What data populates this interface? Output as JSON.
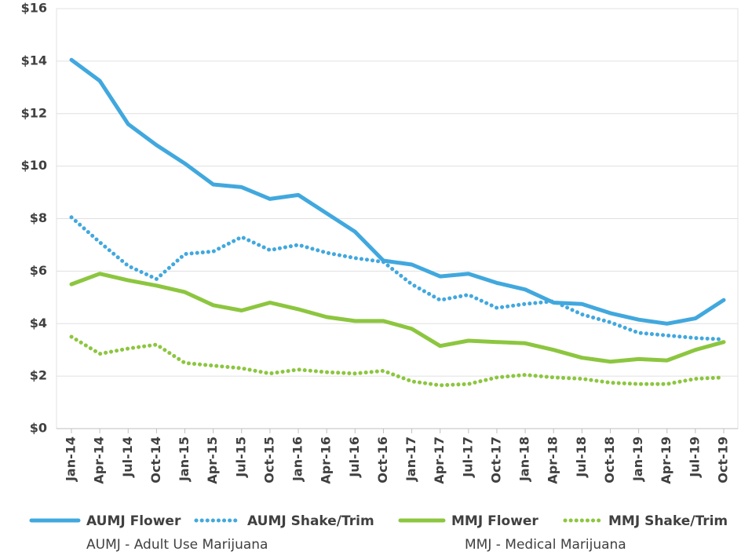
{
  "chart_data": {
    "type": "line",
    "categories": [
      "Jan-14",
      "Apr-14",
      "Jul-14",
      "Oct-14",
      "Jan-15",
      "Apr-15",
      "Jul-15",
      "Oct-15",
      "Jan-16",
      "Apr-16",
      "Jul-16",
      "Oct-16",
      "Jan-17",
      "Apr-17",
      "Jul-17",
      "Oct-17",
      "Jan-18",
      "Apr-18",
      "Jul-18",
      "Oct-18",
      "Jan-19",
      "Apr-19",
      "Jul-19",
      "Oct-19"
    ],
    "series": [
      {
        "name": "AUMJ Flower",
        "color": "#41a8de",
        "style": "solid",
        "values": [
          14.05,
          13.25,
          11.6,
          10.8,
          10.1,
          9.3,
          9.2,
          8.75,
          8.9,
          8.2,
          7.5,
          6.4,
          6.25,
          5.8,
          5.9,
          5.55,
          5.3,
          4.8,
          4.75,
          4.4,
          4.15,
          4.0,
          4.2,
          4.9
        ]
      },
      {
        "name": "AUMJ Shake/Trim",
        "color": "#41a8de",
        "style": "dotted",
        "values": [
          8.05,
          7.1,
          6.2,
          5.7,
          6.65,
          6.75,
          7.3,
          6.8,
          7.0,
          6.7,
          6.5,
          6.35,
          5.5,
          4.9,
          5.1,
          4.6,
          4.75,
          4.85,
          4.35,
          4.05,
          3.65,
          3.55,
          3.45,
          3.4
        ]
      },
      {
        "name": "MMJ Flower",
        "color": "#8cc63f",
        "style": "solid",
        "values": [
          5.5,
          5.9,
          5.65,
          5.45,
          5.2,
          4.7,
          4.5,
          4.8,
          4.55,
          4.25,
          4.1,
          4.1,
          3.8,
          3.15,
          3.35,
          3.3,
          3.25,
          3.0,
          2.7,
          2.55,
          2.65,
          2.6,
          3.0,
          3.3
        ]
      },
      {
        "name": "MMJ Shake/Trim",
        "color": "#8cc63f",
        "style": "dotted",
        "values": [
          3.5,
          2.85,
          3.05,
          3.2,
          2.5,
          2.4,
          2.3,
          2.1,
          2.25,
          2.15,
          2.1,
          2.2,
          1.8,
          1.65,
          1.7,
          1.95,
          2.05,
          1.95,
          1.9,
          1.75,
          1.7,
          1.7,
          1.9,
          1.95
        ]
      }
    ],
    "ylim": [
      0,
      16
    ],
    "yticks": [
      {
        "value": 0,
        "label": "$0"
      },
      {
        "value": 2,
        "label": "$2"
      },
      {
        "value": 4,
        "label": "$4"
      },
      {
        "value": 6,
        "label": "$6"
      },
      {
        "value": 8,
        "label": "$8"
      },
      {
        "value": 10,
        "label": "$10"
      },
      {
        "value": 12,
        "label": "$12"
      },
      {
        "value": 14,
        "label": "$14"
      },
      {
        "value": 16,
        "label": "$16"
      }
    ],
    "grid": true,
    "legend": "bottom",
    "annotations": [
      "AUMJ - Adult Use Marijuana",
      "MMJ - Medical Marijuana"
    ]
  }
}
